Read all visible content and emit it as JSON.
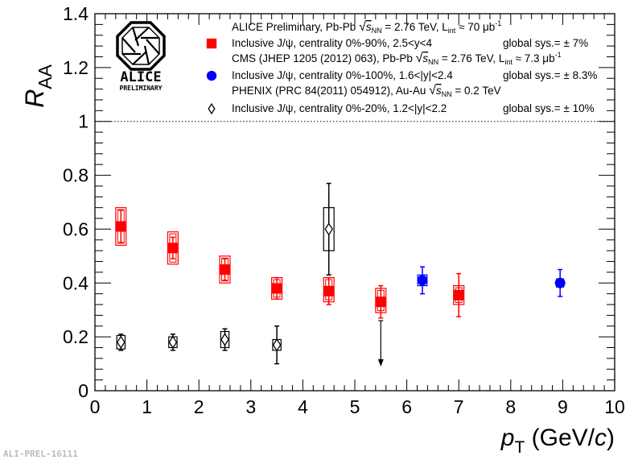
{
  "chart_data": {
    "type": "scatter",
    "title": "",
    "xlabel": "p_T (GeV/c)",
    "xlabel_parts": {
      "var": "p",
      "sub": "T",
      "rest": " (GeV/",
      "unit_it": "c",
      "close": ")"
    },
    "ylabel": "R_AA",
    "ylabel_parts": {
      "var": "R",
      "sub": "AA"
    },
    "xlim": [
      0,
      10
    ],
    "ylim": [
      0,
      1.4
    ],
    "x_ticks": [
      0,
      1,
      2,
      3,
      4,
      5,
      6,
      7,
      8,
      9,
      10
    ],
    "x_tick_labels": [
      "0",
      "1",
      "2",
      "3",
      "4",
      "5",
      "6",
      "7",
      "8",
      "9",
      "10"
    ],
    "y_ticks": [
      0,
      0.2,
      0.4,
      0.6,
      0.8,
      1,
      1.2,
      1.4
    ],
    "y_tick_labels": [
      "0",
      "0.2",
      "0.4",
      "0.6",
      "0.8",
      "1",
      "1.2",
      "1.4"
    ],
    "reference_line": {
      "y": 1,
      "style": "dotted"
    },
    "series": [
      {
        "name": "ALICE Inclusive J/psi, centrality 0%-90%, 2.5<y<4",
        "color": "#ff0000",
        "marker": "square",
        "points": [
          {
            "x": 0.5,
            "y": 0.61,
            "stat": 0.06,
            "sys_lo": 0.54,
            "sys_hi": 0.68,
            "box_w": 0.2
          },
          {
            "x": 1.5,
            "y": 0.53,
            "stat": 0.04,
            "sys_lo": 0.47,
            "sys_hi": 0.59,
            "box_w": 0.2
          },
          {
            "x": 2.5,
            "y": 0.45,
            "stat": 0.04,
            "sys_lo": 0.4,
            "sys_hi": 0.5,
            "box_w": 0.2
          },
          {
            "x": 3.5,
            "y": 0.38,
            "stat": 0.04,
            "sys_lo": 0.34,
            "sys_hi": 0.42,
            "box_w": 0.2
          },
          {
            "x": 4.5,
            "y": 0.37,
            "stat": 0.05,
            "sys_lo": 0.33,
            "sys_hi": 0.42,
            "box_w": 0.2
          },
          {
            "x": 5.5,
            "y": 0.33,
            "stat": 0.06,
            "sys_lo": 0.29,
            "sys_hi": 0.38,
            "box_w": 0.2
          },
          {
            "x": 7.0,
            "y": 0.355,
            "stat": 0.08,
            "sys_lo": 0.32,
            "sys_hi": 0.39,
            "box_w": 0.2
          }
        ]
      },
      {
        "name": "CMS Inclusive J/psi, centrality 0%-100%, 1.6<|y|<2.4",
        "color": "#0000ff",
        "marker": "circle",
        "points": [
          {
            "x": 6.3,
            "y": 0.41,
            "stat": 0.05,
            "sys_lo": 0.39,
            "sys_hi": 0.43,
            "box_w": 0.18
          },
          {
            "x": 8.95,
            "y": 0.4,
            "stat": 0.05,
            "sys_lo": 0.385,
            "sys_hi": 0.415,
            "box_w": 0.14
          }
        ]
      },
      {
        "name": "PHENIX Inclusive J/psi, centrality 0%-20%, 1.2<|y|<2.2",
        "color": "#000000",
        "marker": "diamond-open",
        "points": [
          {
            "x": 0.5,
            "y": 0.18,
            "stat": 0.03,
            "sys_lo": 0.155,
            "sys_hi": 0.205,
            "box_w": 0.16
          },
          {
            "x": 1.5,
            "y": 0.18,
            "stat": 0.03,
            "sys_lo": 0.16,
            "sys_hi": 0.2,
            "box_w": 0.16
          },
          {
            "x": 2.5,
            "y": 0.19,
            "stat": 0.04,
            "sys_lo": 0.16,
            "sys_hi": 0.22,
            "box_w": 0.16
          },
          {
            "x": 3.5,
            "y": 0.17,
            "stat": 0.07,
            "sys_lo": 0.15,
            "sys_hi": 0.19,
            "box_w": 0.16
          },
          {
            "x": 4.5,
            "y": 0.6,
            "stat": 0.17,
            "sys_lo": 0.52,
            "sys_hi": 0.68,
            "box_w": 0.2
          }
        ],
        "upper_limits": [
          {
            "x": 5.5,
            "y_top": 0.26,
            "y_bottom": 0.09
          }
        ]
      }
    ],
    "legend": {
      "placement": "top-right",
      "entries": [
        {
          "marker": "none",
          "text": "ALICE Preliminary, Pb-Pb √s_NN = 2.76 TeV, L_int ≈ 70 μb⁻¹",
          "parts": {
            "a": "ALICE Preliminary, Pb-Pb ",
            "sqrt_s": "s",
            "sqrt_sub": "NN",
            "b": " = 2.76 TeV, L",
            "sub2": "int",
            "c": " ≈ 70 μb",
            "sup": "-1"
          }
        },
        {
          "marker": "square",
          "color": "#ff0000",
          "text": "Inclusive J/ψ, centrality 0%-90%, 2.5<y<4",
          "sys": "global sys.= ± 7%"
        },
        {
          "marker": "none",
          "text": "CMS (JHEP 1205 (2012) 063), Pb-Pb √s_NN = 2.76 TeV, L_int ≈ 7.3 μb⁻¹",
          "parts": {
            "a": "CMS (JHEP 1205 (2012) 063), Pb-Pb ",
            "sqrt_s": "s",
            "sqrt_sub": "NN",
            "b": " = 2.76 TeV, L",
            "sub2": "int",
            "c": " ≈ 7.3 μb",
            "sup": "-1"
          }
        },
        {
          "marker": "circle",
          "color": "#0000ff",
          "text": "Inclusive J/ψ, centrality 0%-100%, 1.6<|y|<2.4",
          "sys": "global sys.= ± 8.3%"
        },
        {
          "marker": "none",
          "text": "PHENIX (PRC 84(2011) 054912), Au-Au √s_NN = 0.2 TeV",
          "parts": {
            "a": "PHENIX (PRC 84(2011) 054912), Au-Au ",
            "sqrt_s": "s",
            "sqrt_sub": "NN",
            "b": " = 0.2 TeV"
          }
        },
        {
          "marker": "diamond-open",
          "color": "#000000",
          "text": "Inclusive J/ψ, centrality 0%-20%, 1.2<|y|<2.2",
          "sys": "global sys.= ± 10%"
        }
      ]
    }
  },
  "logo": {
    "name": "ALICE",
    "subtitle": "PRELIMINARY"
  },
  "footer": {
    "tag": "ALI-PREL-16111"
  }
}
